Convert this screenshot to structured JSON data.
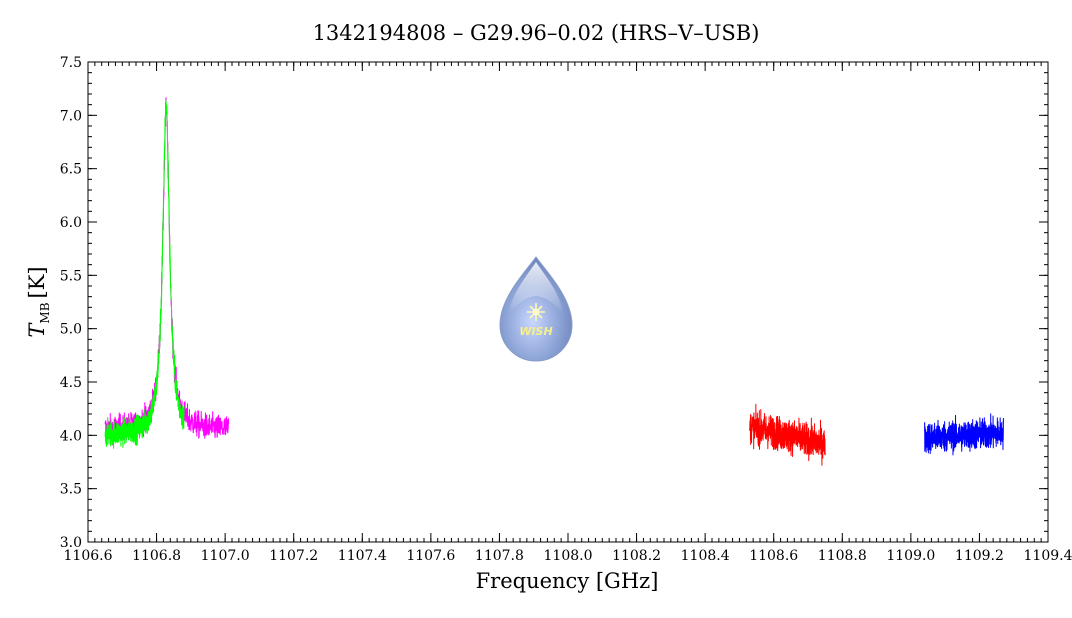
{
  "chart_data": {
    "type": "line",
    "title": "1342194808 – G29.96–0.02 (HRS–V–USB)",
    "xlabel": "Frequency [GHz]",
    "ylabel_main": "T",
    "ylabel_sub": "MB",
    "ylabel_unit": "[K]",
    "xlim": [
      1106.6,
      1109.4
    ],
    "ylim": [
      3.0,
      7.5
    ],
    "xticks": [
      1106.6,
      1106.8,
      1107.0,
      1107.2,
      1107.4,
      1107.6,
      1107.8,
      1108.0,
      1108.2,
      1108.4,
      1108.6,
      1108.8,
      1109.0,
      1109.2,
      1109.4
    ],
    "xtick_labels": [
      "1106.6",
      "1106.8",
      "1107.0",
      "1107.2",
      "1107.4",
      "1107.6",
      "1107.8",
      "1108.0",
      "1108.2",
      "1108.4",
      "1108.6",
      "1108.8",
      "1109.0",
      "1109.2",
      "1109.4"
    ],
    "yticks": [
      3.0,
      3.5,
      4.0,
      4.5,
      5.0,
      5.5,
      6.0,
      6.5,
      7.0,
      7.5
    ],
    "ytick_labels": [
      "3.0",
      "3.5",
      "4.0",
      "4.5",
      "5.0",
      "5.5",
      "6.0",
      "6.5",
      "7.0",
      "7.5"
    ],
    "grid": false,
    "logo_text": "WISH",
    "series": [
      {
        "color": "#ff00ff",
        "x_range": [
          1106.65,
          1107.01
        ],
        "baseline": 4.05,
        "noise": 0.12,
        "line": {
          "center": 1106.828,
          "peak": 7.05,
          "width": 0.012
        }
      },
      {
        "color": "#00ff00",
        "x_range": [
          1106.65,
          1106.88
        ],
        "baseline": 4.0,
        "noise": 0.12,
        "line": {
          "center": 1106.828,
          "peak": 7.1,
          "width": 0.012
        }
      },
      {
        "color": "#ff0000",
        "x_range": [
          1108.53,
          1108.75
        ],
        "baseline": 4.0,
        "noise": 0.15,
        "trend": -0.55
      },
      {
        "color": "#0000ff",
        "x_range": [
          1109.04,
          1109.27
        ],
        "baseline": 4.0,
        "noise": 0.14,
        "trend": 0.15
      }
    ]
  }
}
